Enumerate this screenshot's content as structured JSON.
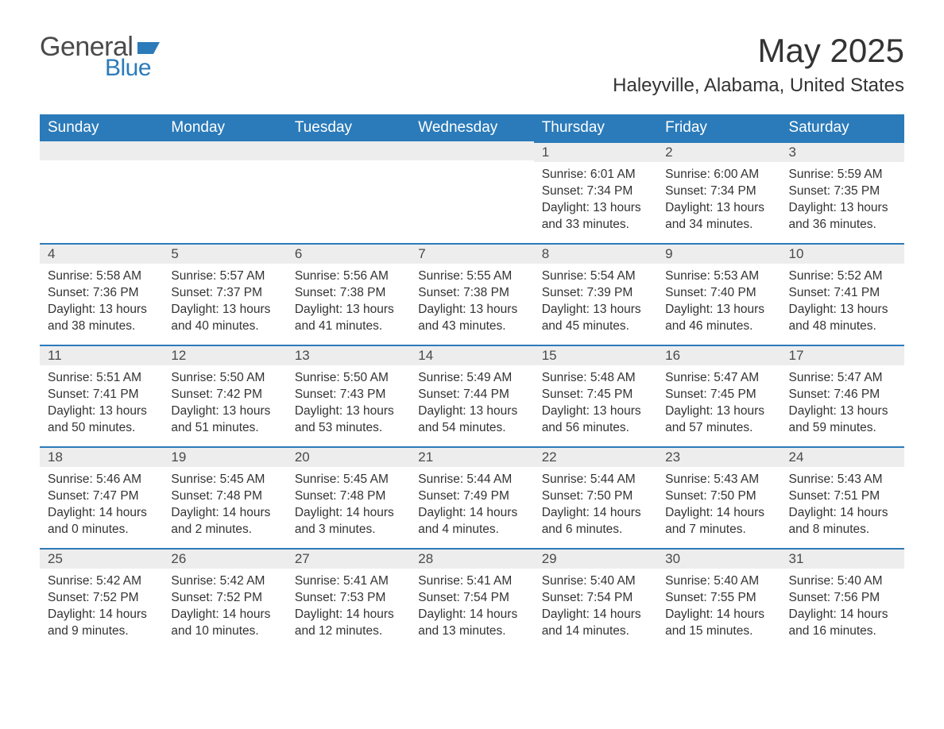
{
  "logo": {
    "word1": "General",
    "word2": "Blue",
    "flag_color": "#2b7bba",
    "text_color": "#4a4a4a"
  },
  "title": "May 2025",
  "location": "Haleyville, Alabama, United States",
  "colors": {
    "header_bg": "#2b7bba",
    "header_text": "#ffffff",
    "daynum_bg": "#ededed",
    "daynum_border": "#2b7bba",
    "body_text": "#333333",
    "page_bg": "#ffffff"
  },
  "dayHeaders": [
    "Sunday",
    "Monday",
    "Tuesday",
    "Wednesday",
    "Thursday",
    "Friday",
    "Saturday"
  ],
  "weeks": [
    [
      null,
      null,
      null,
      null,
      {
        "n": "1",
        "sunrise": "6:01 AM",
        "sunset": "7:34 PM",
        "dl": "13 hours and 33 minutes."
      },
      {
        "n": "2",
        "sunrise": "6:00 AM",
        "sunset": "7:34 PM",
        "dl": "13 hours and 34 minutes."
      },
      {
        "n": "3",
        "sunrise": "5:59 AM",
        "sunset": "7:35 PM",
        "dl": "13 hours and 36 minutes."
      }
    ],
    [
      {
        "n": "4",
        "sunrise": "5:58 AM",
        "sunset": "7:36 PM",
        "dl": "13 hours and 38 minutes."
      },
      {
        "n": "5",
        "sunrise": "5:57 AM",
        "sunset": "7:37 PM",
        "dl": "13 hours and 40 minutes."
      },
      {
        "n": "6",
        "sunrise": "5:56 AM",
        "sunset": "7:38 PM",
        "dl": "13 hours and 41 minutes."
      },
      {
        "n": "7",
        "sunrise": "5:55 AM",
        "sunset": "7:38 PM",
        "dl": "13 hours and 43 minutes."
      },
      {
        "n": "8",
        "sunrise": "5:54 AM",
        "sunset": "7:39 PM",
        "dl": "13 hours and 45 minutes."
      },
      {
        "n": "9",
        "sunrise": "5:53 AM",
        "sunset": "7:40 PM",
        "dl": "13 hours and 46 minutes."
      },
      {
        "n": "10",
        "sunrise": "5:52 AM",
        "sunset": "7:41 PM",
        "dl": "13 hours and 48 minutes."
      }
    ],
    [
      {
        "n": "11",
        "sunrise": "5:51 AM",
        "sunset": "7:41 PM",
        "dl": "13 hours and 50 minutes."
      },
      {
        "n": "12",
        "sunrise": "5:50 AM",
        "sunset": "7:42 PM",
        "dl": "13 hours and 51 minutes."
      },
      {
        "n": "13",
        "sunrise": "5:50 AM",
        "sunset": "7:43 PM",
        "dl": "13 hours and 53 minutes."
      },
      {
        "n": "14",
        "sunrise": "5:49 AM",
        "sunset": "7:44 PM",
        "dl": "13 hours and 54 minutes."
      },
      {
        "n": "15",
        "sunrise": "5:48 AM",
        "sunset": "7:45 PM",
        "dl": "13 hours and 56 minutes."
      },
      {
        "n": "16",
        "sunrise": "5:47 AM",
        "sunset": "7:45 PM",
        "dl": "13 hours and 57 minutes."
      },
      {
        "n": "17",
        "sunrise": "5:47 AM",
        "sunset": "7:46 PM",
        "dl": "13 hours and 59 minutes."
      }
    ],
    [
      {
        "n": "18",
        "sunrise": "5:46 AM",
        "sunset": "7:47 PM",
        "dl": "14 hours and 0 minutes."
      },
      {
        "n": "19",
        "sunrise": "5:45 AM",
        "sunset": "7:48 PM",
        "dl": "14 hours and 2 minutes."
      },
      {
        "n": "20",
        "sunrise": "5:45 AM",
        "sunset": "7:48 PM",
        "dl": "14 hours and 3 minutes."
      },
      {
        "n": "21",
        "sunrise": "5:44 AM",
        "sunset": "7:49 PM",
        "dl": "14 hours and 4 minutes."
      },
      {
        "n": "22",
        "sunrise": "5:44 AM",
        "sunset": "7:50 PM",
        "dl": "14 hours and 6 minutes."
      },
      {
        "n": "23",
        "sunrise": "5:43 AM",
        "sunset": "7:50 PM",
        "dl": "14 hours and 7 minutes."
      },
      {
        "n": "24",
        "sunrise": "5:43 AM",
        "sunset": "7:51 PM",
        "dl": "14 hours and 8 minutes."
      }
    ],
    [
      {
        "n": "25",
        "sunrise": "5:42 AM",
        "sunset": "7:52 PM",
        "dl": "14 hours and 9 minutes."
      },
      {
        "n": "26",
        "sunrise": "5:42 AM",
        "sunset": "7:52 PM",
        "dl": "14 hours and 10 minutes."
      },
      {
        "n": "27",
        "sunrise": "5:41 AM",
        "sunset": "7:53 PM",
        "dl": "14 hours and 12 minutes."
      },
      {
        "n": "28",
        "sunrise": "5:41 AM",
        "sunset": "7:54 PM",
        "dl": "14 hours and 13 minutes."
      },
      {
        "n": "29",
        "sunrise": "5:40 AM",
        "sunset": "7:54 PM",
        "dl": "14 hours and 14 minutes."
      },
      {
        "n": "30",
        "sunrise": "5:40 AM",
        "sunset": "7:55 PM",
        "dl": "14 hours and 15 minutes."
      },
      {
        "n": "31",
        "sunrise": "5:40 AM",
        "sunset": "7:56 PM",
        "dl": "14 hours and 16 minutes."
      }
    ]
  ],
  "labels": {
    "sunrise": "Sunrise: ",
    "sunset": "Sunset: ",
    "daylight": "Daylight: "
  }
}
